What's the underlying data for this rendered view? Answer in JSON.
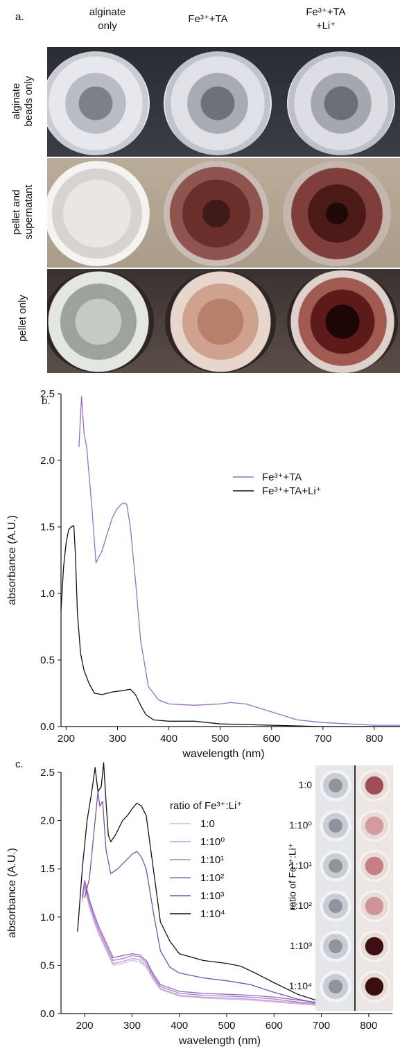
{
  "panel_a": {
    "letter": "a.",
    "columns": [
      {
        "line1": "alginate",
        "line2": "only"
      },
      {
        "line1": "Fe³⁺+TA",
        "line2": ""
      },
      {
        "line1": "Fe³⁺+TA",
        "line2": "+Li⁺"
      }
    ],
    "rows": [
      {
        "line1": "alginate",
        "line2": "beads only"
      },
      {
        "line1": "pellet and",
        "line2": "supernatant"
      },
      {
        "line1": "pellet only",
        "line2": ""
      }
    ]
  },
  "panel_b": {
    "letter": "b."
  },
  "panel_c": {
    "letter": "c.",
    "legend_title": "ratio of Fe³⁺:Li⁺",
    "inset_ylabel": "ratio of Fe³⁺:Li⁺",
    "inset_labels": [
      "1:0",
      "1:10⁰",
      "1:10¹",
      "1:10²",
      "1:10³",
      "1:10⁴"
    ]
  },
  "chart_data": [
    {
      "type": "line",
      "panel": "b",
      "xlabel": "wavelength (nm)",
      "ylabel": "absorbance (A.U.)",
      "xlim": [
        190,
        850
      ],
      "ylim": [
        0,
        2.5
      ],
      "xticks": [
        200,
        300,
        400,
        500,
        600,
        700,
        800
      ],
      "yticks": [
        0.0,
        0.5,
        1.0,
        1.5,
        2.0,
        2.5
      ],
      "legend_position": "top-right",
      "series": [
        {
          "name": "Fe³⁺+TA",
          "color": "#9b6cc4",
          "x": [
            225,
            230,
            235,
            240,
            250,
            258,
            270,
            280,
            290,
            300,
            310,
            318,
            325,
            335,
            345,
            360,
            380,
            400,
            450,
            500,
            520,
            550,
            600,
            650,
            700,
            750,
            800,
            850
          ],
          "y": [
            2.1,
            2.48,
            2.2,
            2.1,
            1.65,
            1.23,
            1.32,
            1.45,
            1.57,
            1.64,
            1.68,
            1.67,
            1.5,
            1.1,
            0.65,
            0.3,
            0.2,
            0.17,
            0.16,
            0.17,
            0.18,
            0.17,
            0.11,
            0.05,
            0.03,
            0.02,
            0.01,
            0.01
          ]
        },
        {
          "name": "Fe³⁺+TA+Li⁺",
          "color": "#111111",
          "x": [
            190,
            195,
            200,
            205,
            210,
            215,
            218,
            222,
            228,
            235,
            245,
            255,
            270,
            290,
            310,
            325,
            335,
            345,
            355,
            370,
            400,
            450,
            500,
            600,
            700,
            850
          ],
          "y": [
            0.87,
            1.2,
            1.38,
            1.48,
            1.5,
            1.51,
            1.3,
            0.85,
            0.55,
            0.42,
            0.32,
            0.25,
            0.24,
            0.26,
            0.27,
            0.28,
            0.24,
            0.16,
            0.09,
            0.05,
            0.04,
            0.04,
            0.02,
            0.01,
            0.0,
            0.0
          ]
        }
      ]
    },
    {
      "type": "line",
      "panel": "c",
      "xlabel": "wavelength (nm)",
      "ylabel": "absorbance (A.U.)",
      "xlim": [
        150,
        850
      ],
      "ylim": [
        0,
        2.5
      ],
      "xticks": [
        200,
        300,
        400,
        500,
        600,
        700,
        800
      ],
      "yticks": [
        0.0,
        0.5,
        1.0,
        1.5,
        2.0,
        2.5
      ],
      "legend_position": "top-center",
      "series": [
        {
          "name": "1:0",
          "color": "#d7b6e3",
          "x": [
            195,
            200,
            205,
            210,
            220,
            230,
            245,
            260,
            280,
            300,
            315,
            330,
            345,
            360,
            400,
            450,
            500,
            550,
            600,
            650,
            700,
            750,
            800,
            850
          ],
          "y": [
            1.15,
            1.3,
            1.2,
            1.1,
            0.95,
            0.82,
            0.66,
            0.5,
            0.52,
            0.55,
            0.54,
            0.48,
            0.35,
            0.25,
            0.18,
            0.16,
            0.15,
            0.14,
            0.12,
            0.1,
            0.08,
            0.06,
            0.05,
            0.05
          ]
        },
        {
          "name": "1:10⁰",
          "color": "#c29ad6",
          "x": [
            195,
            200,
            205,
            210,
            220,
            230,
            245,
            260,
            280,
            300,
            315,
            330,
            345,
            360,
            400,
            450,
            500,
            550,
            600,
            650,
            700,
            750,
            800,
            850
          ],
          "y": [
            1.18,
            1.33,
            1.22,
            1.12,
            0.97,
            0.84,
            0.68,
            0.52,
            0.54,
            0.57,
            0.56,
            0.5,
            0.37,
            0.26,
            0.19,
            0.17,
            0.16,
            0.15,
            0.13,
            0.11,
            0.09,
            0.07,
            0.06,
            0.05
          ]
        },
        {
          "name": "1:10¹",
          "color": "#ac80cc",
          "x": [
            195,
            200,
            205,
            210,
            220,
            230,
            245,
            260,
            280,
            300,
            315,
            330,
            345,
            360,
            400,
            450,
            500,
            550,
            600,
            650,
            700,
            750,
            800,
            850
          ],
          "y": [
            1.2,
            1.36,
            1.25,
            1.15,
            1.0,
            0.87,
            0.71,
            0.55,
            0.57,
            0.6,
            0.59,
            0.53,
            0.39,
            0.28,
            0.21,
            0.19,
            0.18,
            0.17,
            0.15,
            0.12,
            0.1,
            0.08,
            0.07,
            0.06
          ]
        },
        {
          "name": "1:10²",
          "color": "#9566bd",
          "x": [
            195,
            200,
            205,
            210,
            220,
            230,
            245,
            260,
            280,
            300,
            315,
            330,
            345,
            360,
            400,
            450,
            500,
            550,
            600,
            650,
            700,
            750,
            800,
            850
          ],
          "y": [
            1.22,
            1.38,
            1.28,
            1.18,
            1.03,
            0.9,
            0.74,
            0.58,
            0.6,
            0.62,
            0.61,
            0.55,
            0.41,
            0.3,
            0.23,
            0.21,
            0.2,
            0.19,
            0.17,
            0.14,
            0.11,
            0.09,
            0.08,
            0.07
          ]
        },
        {
          "name": "1:10³",
          "color": "#7e4fa8",
          "x": [
            200,
            210,
            220,
            228,
            232,
            238,
            245,
            255,
            270,
            290,
            300,
            310,
            320,
            330,
            345,
            360,
            380,
            400,
            450,
            500,
            550,
            600,
            650,
            700,
            750,
            800,
            850
          ],
          "y": [
            1.2,
            1.4,
            1.9,
            2.3,
            2.15,
            2.2,
            1.7,
            1.45,
            1.5,
            1.6,
            1.65,
            1.68,
            1.62,
            1.5,
            1.05,
            0.65,
            0.48,
            0.42,
            0.37,
            0.34,
            0.3,
            0.22,
            0.15,
            0.1,
            0.07,
            0.06,
            0.05
          ]
        },
        {
          "name": "1:10⁴",
          "color": "#111111",
          "x": [
            185,
            195,
            205,
            215,
            222,
            228,
            235,
            240,
            245,
            250,
            255,
            265,
            280,
            290,
            300,
            310,
            320,
            330,
            345,
            360,
            380,
            400,
            450,
            500,
            530,
            560,
            600,
            650,
            700,
            750,
            800,
            850
          ],
          "y": [
            0.85,
            1.5,
            2.0,
            2.3,
            2.55,
            2.3,
            2.35,
            2.6,
            2.2,
            1.85,
            1.78,
            1.85,
            2.0,
            2.05,
            2.12,
            2.18,
            2.15,
            2.05,
            1.5,
            0.95,
            0.75,
            0.62,
            0.55,
            0.52,
            0.49,
            0.42,
            0.32,
            0.2,
            0.12,
            0.08,
            0.06,
            0.05
          ]
        }
      ]
    }
  ]
}
